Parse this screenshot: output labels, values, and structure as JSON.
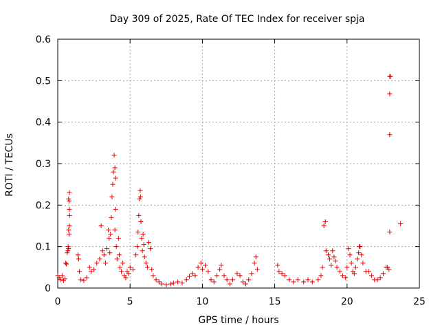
{
  "chart_data": {
    "type": "scatter",
    "title": "Day 309 of 2025, Rate Of TEC Index for receiver spja",
    "xlabel": "GPS time / hours",
    "ylabel": "ROTI / TECUs",
    "xlim": [
      0,
      25
    ],
    "ylim": [
      0,
      0.6
    ],
    "xticks": [
      0,
      5,
      10,
      15,
      20,
      25
    ],
    "yticks": [
      0,
      0.1,
      0.2,
      0.3,
      0.4,
      0.5,
      0.6
    ],
    "xtick_labels": [
      "0",
      "5",
      "10",
      "15",
      "20",
      "25"
    ],
    "ytick_labels": [
      "0",
      "0.1",
      "0.2",
      "0.3",
      "0.4",
      "0.5",
      "0.6"
    ],
    "grid": true,
    "marker": "plus",
    "marker_color": "#e00000",
    "series": [
      {
        "name": "ROTI",
        "points": [
          [
            0.0,
            0.03
          ],
          [
            0.1,
            0.025
          ],
          [
            0.2,
            0.02
          ],
          [
            0.3,
            0.03
          ],
          [
            0.4,
            0.018
          ],
          [
            0.5,
            0.022
          ],
          [
            0.55,
            0.06
          ],
          [
            0.6,
            0.058
          ],
          [
            0.65,
            0.085
          ],
          [
            0.7,
            0.09
          ],
          [
            0.72,
            0.1
          ],
          [
            0.75,
            0.14
          ],
          [
            0.75,
            0.215
          ],
          [
            0.78,
            0.21
          ],
          [
            0.8,
            0.23
          ],
          [
            0.8,
            0.19
          ],
          [
            0.82,
            0.175
          ],
          [
            0.8,
            0.15
          ],
          [
            0.78,
            0.13
          ],
          [
            0.75,
            0.095
          ],
          [
            1.4,
            0.08
          ],
          [
            1.45,
            0.07
          ],
          [
            1.5,
            0.04
          ],
          [
            1.6,
            0.02
          ],
          [
            1.8,
            0.018
          ],
          [
            2.0,
            0.025
          ],
          [
            2.2,
            0.05
          ],
          [
            2.3,
            0.04
          ],
          [
            2.5,
            0.045
          ],
          [
            2.7,
            0.06
          ],
          [
            2.9,
            0.07
          ],
          [
            3.0,
            0.15
          ],
          [
            3.1,
            0.09
          ],
          [
            3.2,
            0.08
          ],
          [
            3.3,
            0.06
          ],
          [
            3.4,
            0.095
          ],
          [
            3.5,
            0.14
          ],
          [
            3.55,
            0.12
          ],
          [
            3.6,
            0.085
          ],
          [
            3.65,
            0.13
          ],
          [
            3.7,
            0.17
          ],
          [
            3.75,
            0.22
          ],
          [
            3.8,
            0.25
          ],
          [
            3.85,
            0.28
          ],
          [
            3.9,
            0.32
          ],
          [
            3.95,
            0.29
          ],
          [
            4.0,
            0.265
          ],
          [
            4.0,
            0.19
          ],
          [
            3.95,
            0.14
          ],
          [
            4.05,
            0.1
          ],
          [
            4.1,
            0.07
          ],
          [
            4.2,
            0.12
          ],
          [
            4.25,
            0.08
          ],
          [
            4.3,
            0.05
          ],
          [
            4.4,
            0.04
          ],
          [
            4.5,
            0.06
          ],
          [
            4.6,
            0.03
          ],
          [
            4.7,
            0.025
          ],
          [
            4.8,
            0.04
          ],
          [
            4.9,
            0.035
          ],
          [
            5.0,
            0.05
          ],
          [
            5.2,
            0.045
          ],
          [
            5.4,
            0.08
          ],
          [
            5.5,
            0.1
          ],
          [
            5.55,
            0.135
          ],
          [
            5.6,
            0.175
          ],
          [
            5.65,
            0.215
          ],
          [
            5.7,
            0.235
          ],
          [
            5.72,
            0.22
          ],
          [
            5.75,
            0.16
          ],
          [
            5.8,
            0.12
          ],
          [
            5.85,
            0.09
          ],
          [
            5.9,
            0.13
          ],
          [
            5.95,
            0.105
          ],
          [
            6.0,
            0.075
          ],
          [
            6.1,
            0.06
          ],
          [
            6.2,
            0.05
          ],
          [
            6.3,
            0.11
          ],
          [
            6.4,
            0.095
          ],
          [
            6.5,
            0.045
          ],
          [
            6.6,
            0.03
          ],
          [
            6.8,
            0.02
          ],
          [
            7.0,
            0.015
          ],
          [
            7.2,
            0.01
          ],
          [
            7.5,
            0.008
          ],
          [
            7.8,
            0.01
          ],
          [
            8.0,
            0.012
          ],
          [
            8.3,
            0.015
          ],
          [
            8.6,
            0.012
          ],
          [
            8.9,
            0.02
          ],
          [
            9.1,
            0.028
          ],
          [
            9.3,
            0.035
          ],
          [
            9.5,
            0.03
          ],
          [
            9.7,
            0.05
          ],
          [
            9.9,
            0.06
          ],
          [
            10.0,
            0.045
          ],
          [
            10.2,
            0.055
          ],
          [
            10.4,
            0.04
          ],
          [
            10.6,
            0.02
          ],
          [
            10.8,
            0.015
          ],
          [
            11.0,
            0.03
          ],
          [
            11.2,
            0.045
          ],
          [
            11.3,
            0.055
          ],
          [
            11.5,
            0.03
          ],
          [
            11.7,
            0.02
          ],
          [
            11.9,
            0.01
          ],
          [
            12.1,
            0.02
          ],
          [
            12.4,
            0.035
          ],
          [
            12.6,
            0.03
          ],
          [
            12.8,
            0.015
          ],
          [
            13.0,
            0.01
          ],
          [
            13.2,
            0.02
          ],
          [
            13.4,
            0.035
          ],
          [
            13.6,
            0.06
          ],
          [
            13.7,
            0.075
          ],
          [
            13.8,
            0.045
          ],
          [
            15.2,
            0.055
          ],
          [
            15.3,
            0.04
          ],
          [
            15.5,
            0.035
          ],
          [
            15.7,
            0.03
          ],
          [
            16.0,
            0.02
          ],
          [
            16.3,
            0.015
          ],
          [
            16.6,
            0.02
          ],
          [
            17.0,
            0.015
          ],
          [
            17.3,
            0.02
          ],
          [
            17.6,
            0.015
          ],
          [
            18.0,
            0.02
          ],
          [
            18.2,
            0.03
          ],
          [
            18.3,
            0.05
          ],
          [
            18.4,
            0.15
          ],
          [
            18.5,
            0.16
          ],
          [
            18.55,
            0.09
          ],
          [
            18.7,
            0.08
          ],
          [
            18.8,
            0.07
          ],
          [
            18.9,
            0.055
          ],
          [
            19.0,
            0.09
          ],
          [
            19.1,
            0.075
          ],
          [
            19.2,
            0.065
          ],
          [
            19.3,
            0.05
          ],
          [
            19.5,
            0.04
          ],
          [
            19.7,
            0.03
          ],
          [
            19.9,
            0.025
          ],
          [
            20.0,
            0.05
          ],
          [
            20.1,
            0.095
          ],
          [
            20.2,
            0.08
          ],
          [
            20.3,
            0.06
          ],
          [
            20.4,
            0.04
          ],
          [
            20.5,
            0.035
          ],
          [
            20.6,
            0.05
          ],
          [
            20.7,
            0.07
          ],
          [
            20.8,
            0.085
          ],
          [
            20.85,
            0.1
          ],
          [
            20.9,
            0.1
          ],
          [
            21.0,
            0.08
          ],
          [
            21.1,
            0.06
          ],
          [
            21.3,
            0.04
          ],
          [
            21.5,
            0.04
          ],
          [
            21.7,
            0.03
          ],
          [
            21.9,
            0.02
          ],
          [
            22.1,
            0.02
          ],
          [
            22.3,
            0.025
          ],
          [
            22.5,
            0.035
          ],
          [
            22.7,
            0.05
          ],
          [
            22.8,
            0.05
          ],
          [
            22.9,
            0.045
          ],
          [
            22.95,
            0.135
          ],
          [
            22.95,
            0.51
          ],
          [
            23.0,
            0.51
          ],
          [
            22.95,
            0.468
          ],
          [
            22.95,
            0.37
          ],
          [
            23.7,
            0.155
          ]
        ]
      }
    ]
  }
}
